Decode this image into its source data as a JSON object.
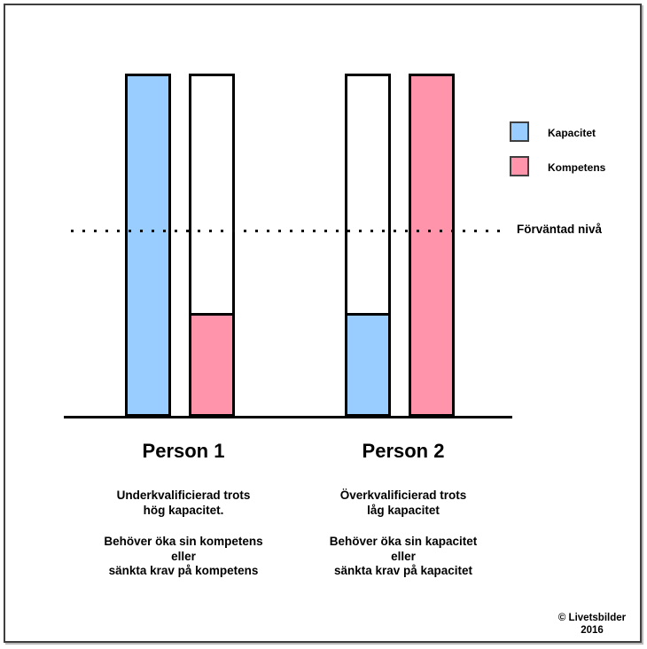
{
  "chart_data": {
    "type": "bar",
    "axis_max": 100,
    "ylim": [
      0,
      100
    ],
    "grid": false,
    "legend_position": "right",
    "legend": [
      {
        "label": "Kapacitet",
        "color": "#99CCFF"
      },
      {
        "label": "Kompetens",
        "color": "#FF94AB"
      }
    ],
    "reference_line": {
      "label": "Förväntad nivå",
      "value": 54.5,
      "style": "dotted"
    },
    "groups": [
      {
        "label": "Person 1",
        "description": "Underkvalificierad trots\nhög kapacitet.",
        "advice": "Behöver öka sin kompetens\neller\nsänkta krav på kompetens",
        "bars": [
          {
            "name": "Kapacitet",
            "value": 100,
            "color": "#99CCFF"
          },
          {
            "name": "Kompetens",
            "value": 30,
            "color": "#FF94AB"
          }
        ]
      },
      {
        "label": "Person 2",
        "description": "Överkvalificierad trots\nlåg kapacitet",
        "advice": "Behöver öka sin kapacitet\neller\nsänkta krav på kapacitet",
        "bars": [
          {
            "name": "Kapacitet",
            "value": 30,
            "color": "#99CCFF"
          },
          {
            "name": "Kompetens",
            "value": 100,
            "color": "#FF94AB"
          }
        ]
      }
    ]
  },
  "footer": {
    "copyright": "© Livetsbilder\n2016"
  }
}
